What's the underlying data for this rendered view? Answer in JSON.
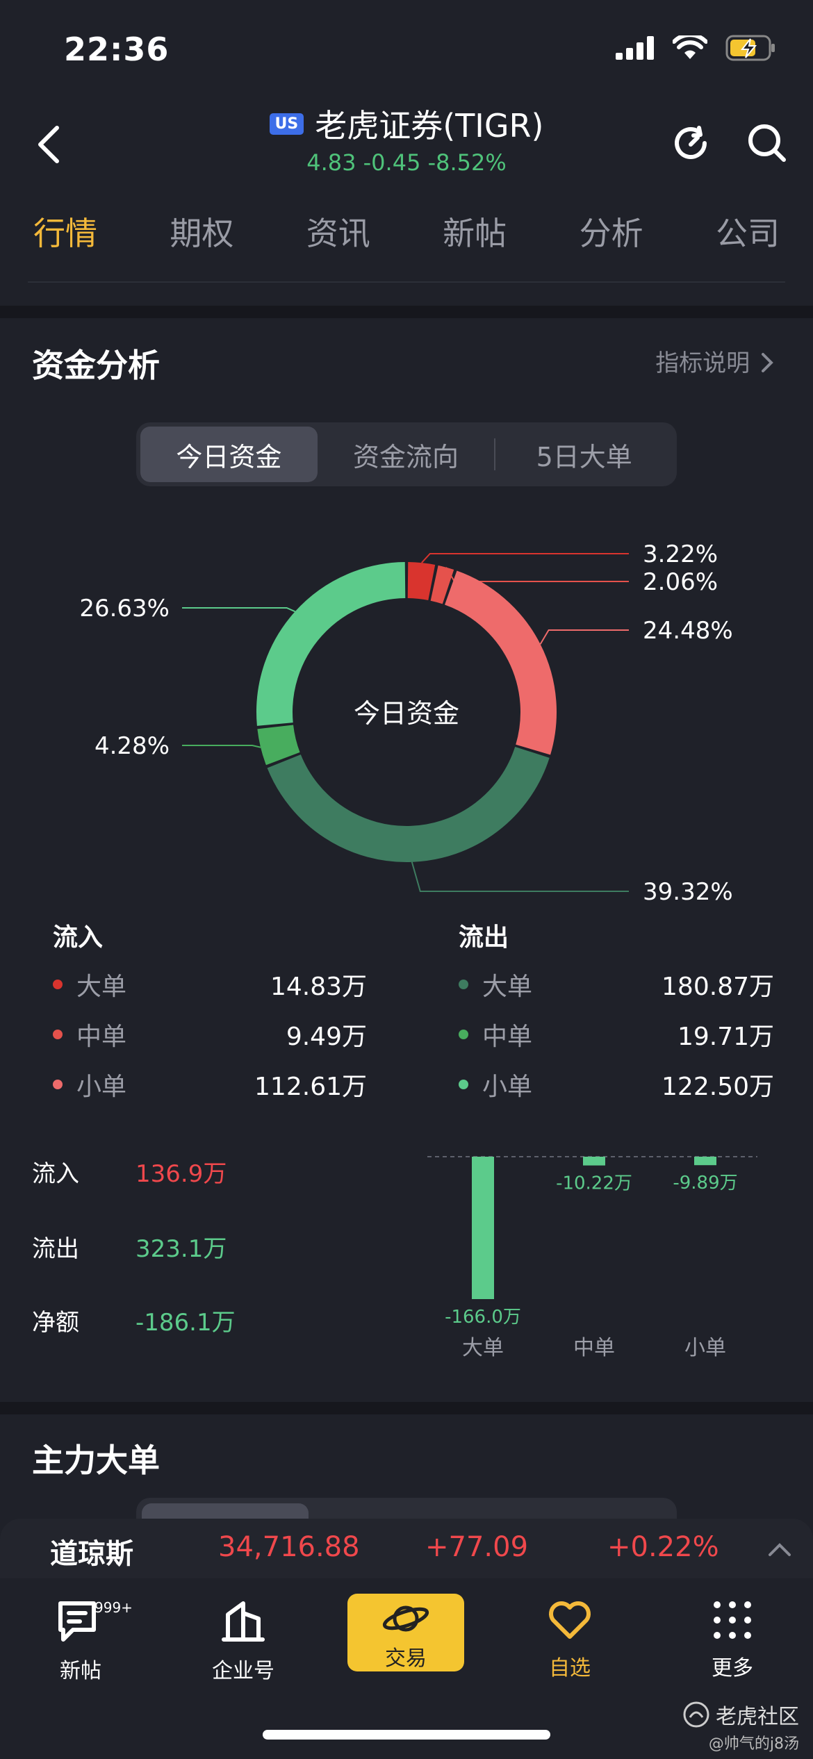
{
  "status": {
    "time": "22:36"
  },
  "header": {
    "market_badge": "US",
    "title": "老虎证券(TIGR)",
    "price": "4.83",
    "change": "-0.45",
    "change_pct": "-8.52%"
  },
  "tabs": [
    "行情",
    "期权",
    "资讯",
    "新帖",
    "分析",
    "公司"
  ],
  "capital": {
    "title": "资金分析",
    "link": "指标说明",
    "segments": [
      "今日资金",
      "资金流向",
      "5日大单"
    ],
    "donut_center": "今日资金"
  },
  "chart_data": [
    {
      "type": "pie",
      "title": "今日资金",
      "slices": [
        {
          "label": "流入 大单",
          "pct": 3.22,
          "display": "3.22%",
          "color": "#d9342e"
        },
        {
          "label": "流入 中单",
          "pct": 2.06,
          "display": "2.06%",
          "color": "#e5524c"
        },
        {
          "label": "流入 小单",
          "pct": 24.48,
          "display": "24.48%",
          "color": "#ee6b6b"
        },
        {
          "label": "流出 大单",
          "pct": 39.32,
          "display": "39.32%",
          "color": "#3e7c60"
        },
        {
          "label": "流出 中单",
          "pct": 4.28,
          "display": "4.28%",
          "color": "#48ad5e"
        },
        {
          "label": "流出 小单",
          "pct": 26.63,
          "display": "26.63%",
          "color": "#5ccb8b"
        }
      ]
    },
    {
      "type": "bar",
      "categories": [
        "大单",
        "中单",
        "小单"
      ],
      "values": [
        -166.0,
        -10.22,
        -9.89
      ],
      "value_labels": [
        "-166.0万",
        "-10.22万",
        "-9.89万"
      ],
      "unit": "万",
      "color": "#5ccb8b"
    }
  ],
  "legend": {
    "inflow_title": "流入",
    "outflow_title": "流出",
    "inflow": [
      {
        "label": "大单",
        "value": "14.83万",
        "color": "#d9342e"
      },
      {
        "label": "中单",
        "value": "9.49万",
        "color": "#e5524c"
      },
      {
        "label": "小单",
        "value": "112.61万",
        "color": "#ee6b6b"
      }
    ],
    "outflow": [
      {
        "label": "大单",
        "value": "180.87万",
        "color": "#3e7c60"
      },
      {
        "label": "中单",
        "value": "19.71万",
        "color": "#48ad5e"
      },
      {
        "label": "小单",
        "value": "122.50万",
        "color": "#5ccb8b"
      }
    ]
  },
  "summary": [
    {
      "label": "流入",
      "value": "136.9万",
      "color": "#f0484c"
    },
    {
      "label": "流出",
      "value": "323.1万",
      "color": "#5ccb8b"
    },
    {
      "label": "净额",
      "value": "-186.1万",
      "color": "#5ccb8b"
    }
  ],
  "main_orders": {
    "title": "主力大单"
  },
  "index": {
    "name": "道琼斯",
    "value": "34,716.88",
    "change": "+77.09",
    "change_pct": "+0.22%"
  },
  "nav": {
    "items": [
      "新帖",
      "企业号",
      "交易",
      "自选",
      "更多"
    ],
    "badge": "999+",
    "active_color": "#f4b93a"
  },
  "watermark": {
    "brand": "老虎社区",
    "user": "@帅气的j8汤"
  }
}
